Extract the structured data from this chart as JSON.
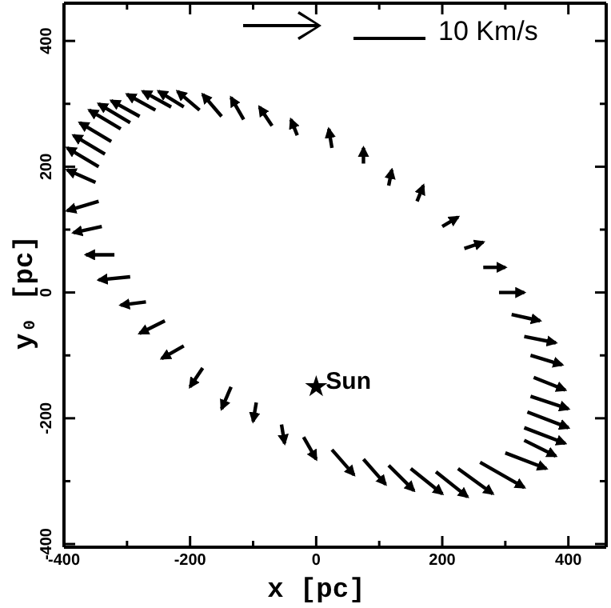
{
  "chart_data": {
    "type": "line",
    "xlabel": "x [pc]",
    "ylabel": "y₀ [pc]",
    "xlim": [
      -400,
      460
    ],
    "ylim": [
      -405,
      460
    ],
    "xticks": [
      -400,
      {
        "value": -300,
        "label": null
      },
      -200,
      {
        "value": -100,
        "label": null
      },
      0,
      {
        "value": 100,
        "label": null
      },
      200,
      {
        "value": 300,
        "label": null
      },
      400
    ],
    "yticks": [
      -400,
      {
        "value": -300,
        "label": null
      },
      -200,
      {
        "value": -100,
        "label": null
      },
      0,
      {
        "value": 100,
        "label": null
      },
      200,
      {
        "value": 300,
        "label": null
      },
      400
    ],
    "annotations": [
      "10 Km/s"
    ],
    "series": [
      {
        "type": "line",
        "color": "#000000",
        "x": [
          -345,
          -395
        ],
        "values": [
          200,
          230
        ]
      },
      {
        "color": "#000000",
        "x": [
          -335,
          -385
        ],
        "values": [
          220,
          250
        ]
      },
      {
        "color": "#000000",
        "x": [
          -325,
          -375
        ],
        "values": [
          240,
          270
        ]
      },
      {
        "color": "#000000",
        "x": [
          -310,
          -360
        ],
        "values": [
          260,
          290
        ]
      },
      {
        "color": "#000000",
        "x": [
          -295,
          -345
        ],
        "values": [
          270,
          300
        ]
      },
      {
        "color": "#000000",
        "x": [
          -280,
          -325
        ],
        "values": [
          280,
          305
        ]
      },
      {
        "color": "#000000",
        "x": [
          -255,
          -300
        ],
        "values": [
          290,
          315
        ]
      },
      {
        "color": "#000000",
        "x": [
          -230,
          -275
        ],
        "values": [
          295,
          320
        ]
      },
      {
        "color": "#000000",
        "x": [
          -210,
          -250
        ],
        "values": [
          295,
          320
        ]
      },
      {
        "color": "#000000",
        "x": [
          -185,
          -220
        ],
        "values": [
          290,
          320
        ]
      },
      {
        "color": "#000000",
        "x": [
          -150,
          -180
        ],
        "values": [
          280,
          315
        ]
      },
      {
        "color": "#000000",
        "x": [
          -115,
          -135
        ],
        "values": [
          275,
          310
        ]
      },
      {
        "color": "#000000",
        "x": [
          -70,
          -90
        ],
        "values": [
          265,
          295
        ]
      },
      {
        "color": "#000000",
        "x": [
          -30,
          -40
        ],
        "values": [
          250,
          275
        ]
      },
      {
        "color": "#000000",
        "x": [
          25,
          20
        ],
        "values": [
          230,
          260
        ]
      },
      {
        "color": "#000000",
        "x": [
          75,
          75
        ],
        "values": [
          205,
          230
        ]
      },
      {
        "color": "#000000",
        "x": [
          115,
          120
        ],
        "values": [
          170,
          195
        ]
      },
      {
        "color": "#000000",
        "x": [
          160,
          170
        ],
        "values": [
          145,
          170
        ]
      },
      {
        "color": "#000000",
        "x": [
          200,
          225
        ],
        "values": [
          105,
          120
        ]
      },
      {
        "color": "#000000",
        "x": [
          235,
          265
        ],
        "values": [
          70,
          80
        ]
      },
      {
        "color": "#000000",
        "x": [
          265,
          300
        ],
        "values": [
          40,
          40
        ]
      },
      {
        "color": "#000000",
        "x": [
          290,
          330
        ],
        "values": [
          0,
          0
        ]
      },
      {
        "color": "#000000",
        "x": [
          310,
          355
        ],
        "values": [
          -35,
          -45
        ]
      },
      {
        "color": "#000000",
        "x": [
          330,
          380
        ],
        "values": [
          -70,
          -80
        ]
      },
      {
        "color": "#000000",
        "x": [
          340,
          390
        ],
        "values": [
          -100,
          -115
        ]
      },
      {
        "color": "#000000",
        "x": [
          345,
          395
        ],
        "values": [
          -135,
          -155
        ]
      },
      {
        "color": "#000000",
        "x": [
          340,
          400
        ],
        "values": [
          -165,
          -185
        ]
      },
      {
        "color": "#000000",
        "x": [
          335,
          400
        ],
        "values": [
          -190,
          -215
        ]
      },
      {
        "color": "#000000",
        "x": [
          330,
          395
        ],
        "values": [
          -215,
          -240
        ]
      },
      {
        "color": "#000000",
        "x": [
          330,
          380
        ],
        "values": [
          -235,
          -260
        ]
      },
      {
        "color": "#000000",
        "x": [
          300,
          365
        ],
        "values": [
          -255,
          -280
        ]
      },
      {
        "color": "#000000",
        "x": [
          260,
          330
        ],
        "values": [
          -270,
          -310
        ]
      },
      {
        "color": "#000000",
        "x": [
          225,
          280
        ],
        "values": [
          -280,
          -320
        ]
      },
      {
        "color": "#000000",
        "x": [
          190,
          240
        ],
        "values": [
          -285,
          -325
        ]
      },
      {
        "color": "#000000",
        "x": [
          150,
          200
        ],
        "values": [
          -280,
          -320
        ]
      },
      {
        "color": "#000000",
        "x": [
          115,
          155
        ],
        "values": [
          -275,
          -315
        ]
      },
      {
        "color": "#000000",
        "x": [
          75,
          110
        ],
        "values": [
          -265,
          -305
        ]
      },
      {
        "color": "#000000",
        "x": [
          25,
          60
        ],
        "values": [
          -250,
          -290
        ]
      },
      {
        "color": "#000000",
        "x": [
          -20,
          0
        ],
        "values": [
          -230,
          -265
        ]
      },
      {
        "color": "#000000",
        "x": [
          -55,
          -50
        ],
        "values": [
          -210,
          -240
        ]
      },
      {
        "color": "#000000",
        "x": [
          -95,
          -100
        ],
        "values": [
          -175,
          -205
        ]
      },
      {
        "color": "#000000",
        "x": [
          -135,
          -150
        ],
        "values": [
          -150,
          -185
        ]
      },
      {
        "color": "#000000",
        "x": [
          -180,
          -200
        ],
        "values": [
          -120,
          -150
        ]
      },
      {
        "color": "#000000",
        "x": [
          -210,
          -245
        ],
        "values": [
          -85,
          -105
        ]
      },
      {
        "color": "#000000",
        "x": [
          -240,
          -280
        ],
        "values": [
          -45,
          -65
        ]
      },
      {
        "color": "#000000",
        "x": [
          -270,
          -310
        ],
        "values": [
          -15,
          -20
        ]
      },
      {
        "color": "#000000",
        "x": [
          -295,
          -345
        ],
        "values": [
          25,
          20
        ]
      },
      {
        "color": "#000000",
        "x": [
          -320,
          -365
        ],
        "values": [
          60,
          60
        ]
      },
      {
        "color": "#000000",
        "x": [
          -340,
          -385
        ],
        "values": [
          105,
          95
        ]
      },
      {
        "color": "#000000",
        "x": [
          -345,
          -395
        ],
        "values": [
          145,
          130
        ]
      },
      {
        "color": "#000000",
        "x": [
          -350,
          -395
        ],
        "values": [
          175,
          195
        ]
      },
      {
        "type": "scatter",
        "name": "Sun",
        "color": "#000000",
        "marker": "star",
        "x": [
          0
        ],
        "values": [
          -150
        ]
      }
    ]
  }
}
